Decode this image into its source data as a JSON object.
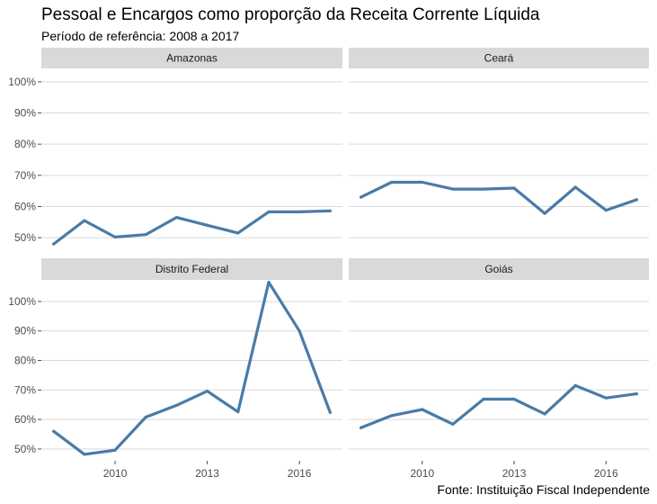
{
  "title": "Pessoal e Encargos como proporção da Receita Corrente Líquida",
  "subtitle": "Período de referência: 2008 a 2017",
  "caption": "Fonte: Instituição Fiscal Independente",
  "colors": {
    "line": "#4a7ba7",
    "strip": "#d9d9d9",
    "grid": "#d9d9d9"
  },
  "chart_data": {
    "type": "line",
    "x": [
      2008,
      2009,
      2010,
      2011,
      2012,
      2013,
      2014,
      2015,
      2016,
      2017
    ],
    "x_ticks": [
      2010,
      2013,
      2016
    ],
    "y_ticks": [
      50,
      60,
      70,
      80,
      90,
      100
    ],
    "y_tick_labels": [
      "50%",
      "60%",
      "70%",
      "80%",
      "90%",
      "100%"
    ],
    "xlim": [
      2007.6,
      2017.4
    ],
    "grid": true,
    "facets": [
      {
        "name": "Amazonas",
        "ylim": [
          46,
          104
        ],
        "values": [
          48.0,
          55.5,
          50.2,
          51.0,
          56.5,
          54.0,
          51.5,
          58.3,
          58.3,
          58.6
        ]
      },
      {
        "name": "Ceará",
        "ylim": [
          46,
          104
        ],
        "values": [
          63.0,
          67.8,
          67.8,
          65.6,
          65.6,
          65.9,
          57.8,
          66.2,
          58.8,
          62.2
        ]
      },
      {
        "name": "Distrito Federal",
        "ylim": [
          46,
          107
        ],
        "values": [
          56.0,
          48.2,
          49.6,
          60.8,
          64.8,
          69.6,
          62.6,
          106.5,
          90.0,
          62.4
        ]
      },
      {
        "name": "Goiás",
        "ylim": [
          46,
          107
        ],
        "values": [
          57.2,
          61.3,
          63.4,
          58.4,
          66.9,
          66.9,
          61.9,
          71.5,
          67.3,
          68.7
        ]
      }
    ]
  }
}
